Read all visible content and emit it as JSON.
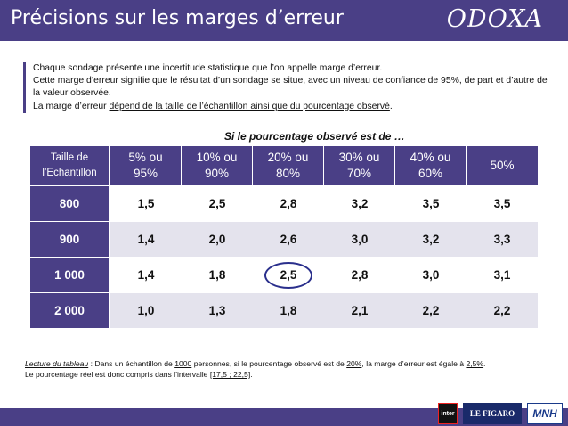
{
  "header": {
    "title": "Précisions sur les marges d’erreur",
    "logo": "ODOXA"
  },
  "intro": {
    "line1": "Chaque sondage présente une incertitude statistique que l’on appelle marge d’erreur.",
    "line2": "Cette marge d’erreur signifie que le résultat d’un sondage se situe, avec un niveau de confiance de 95%, de part et d’autre de la valeur observée.",
    "line3_prefix": "La marge d’erreur ",
    "line3_underlined": "dépend de la taille de l’échantillon ainsi que du pourcentage observé",
    "line3_suffix": "."
  },
  "subheading": "Si le pourcentage observé est de …",
  "table": {
    "size_header_line1": "Taille de",
    "size_header_line2": "l’Echantillon",
    "columns": [
      {
        "line1": "5% ou",
        "line2": "95%"
      },
      {
        "line1": "10% ou",
        "line2": "90%"
      },
      {
        "line1": "20% ou",
        "line2": "80%"
      },
      {
        "line1": "30% ou",
        "line2": "70%"
      },
      {
        "line1": "40% ou",
        "line2": "60%"
      },
      {
        "line1": "50%",
        "line2": ""
      }
    ],
    "rows": [
      {
        "size": "800",
        "values": [
          "1,5",
          "2,5",
          "2,8",
          "3,2",
          "3,5",
          "3,5"
        ]
      },
      {
        "size": "900",
        "values": [
          "1,4",
          "2,0",
          "2,6",
          "3,0",
          "3,2",
          "3,3"
        ]
      },
      {
        "size": "1 000",
        "values": [
          "1,4",
          "1,8",
          "2,5",
          "2,8",
          "3,0",
          "3,1"
        ]
      },
      {
        "size": "2 000",
        "values": [
          "1,0",
          "1,3",
          "1,8",
          "2,1",
          "2,2",
          "2,2"
        ]
      }
    ]
  },
  "footnote": {
    "label": "Lecture du tableau",
    "t1": " : Dans un échantillon de ",
    "n": "1000",
    "t2": " personnes, si le pourcentage observé est de ",
    "pct": "20%",
    "t3": ", la marge d’erreur est égale à ",
    "margin": "2,5%",
    "t4": ".",
    "line2_prefix": "Le pourcentage réel est donc compris dans l’intervalle ",
    "interval": "[17,5 ; 22,5]",
    "line2_suffix": "."
  },
  "partners": {
    "inter": "inter",
    "figaro": "LE FIGARO",
    "mnh": "MNH"
  },
  "colors": {
    "brand": "#4a3f86",
    "row_alt": "#e4e3ed",
    "ring": "#2a2f8c"
  }
}
